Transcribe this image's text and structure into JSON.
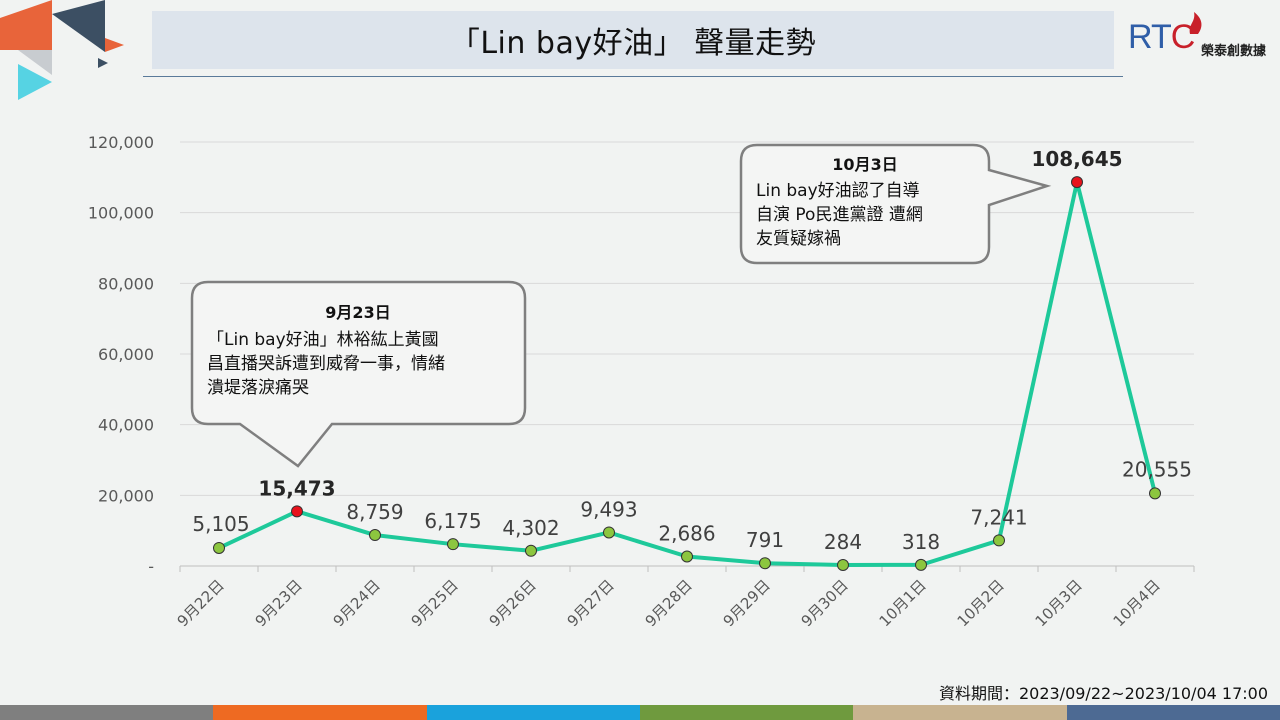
{
  "header": {
    "title": "「Lin bay好油」 聲量走勢"
  },
  "logo": {
    "mark": "RTC",
    "name": "榮泰創數據"
  },
  "footer": {
    "data_period": "資料期間：2023/09/22~2023/10/04 17:00"
  },
  "colors": {
    "line": "#1ec99a",
    "point": "#8cc63f",
    "highlight_point": "#e8121c",
    "strip": [
      "#7f7f7f",
      "#ee6a22",
      "#1aa2dc",
      "#6f9a3e",
      "#c8b390",
      "#4d6a93"
    ]
  },
  "chart_data": {
    "type": "line",
    "categories": [
      "9月22日",
      "9月23日",
      "9月24日",
      "9月25日",
      "9月26日",
      "9月27日",
      "9月28日",
      "9月29日",
      "9月30日",
      "10月1日",
      "10月2日",
      "10月3日",
      "10月4日"
    ],
    "values": [
      5105,
      15473,
      8759,
      6175,
      4302,
      9493,
      2686,
      791,
      284,
      318,
      7241,
      108645,
      20555
    ],
    "value_labels": [
      "5,105",
      "15,473",
      "8,759",
      "6,175",
      "4,302",
      "9,493",
      "2,686",
      "791",
      "284",
      "318",
      "7,241",
      "108,645",
      "20,555"
    ],
    "highlight_indices": [
      1,
      11
    ],
    "ylim": [
      0,
      120000
    ],
    "yticks": [
      0,
      20000,
      40000,
      60000,
      80000,
      100000,
      120000
    ],
    "ytick_labels": [
      "-",
      "20,000",
      "40,000",
      "60,000",
      "80,000",
      "100,000",
      "120,000"
    ],
    "grid": true,
    "annotations": [
      {
        "target_index": 1,
        "title": "9月23日",
        "lines": [
          "「Lin bay好油」林裕紘上黃國",
          "昌直播哭訴遭到威脅一事，情緒",
          "潰堤落淚痛哭"
        ]
      },
      {
        "target_index": 11,
        "title": "10月3日",
        "lines": [
          "Lin bay好油認了自導",
          "自演  Po民進黨證 遭網",
          "友質疑嫁禍"
        ]
      }
    ]
  }
}
